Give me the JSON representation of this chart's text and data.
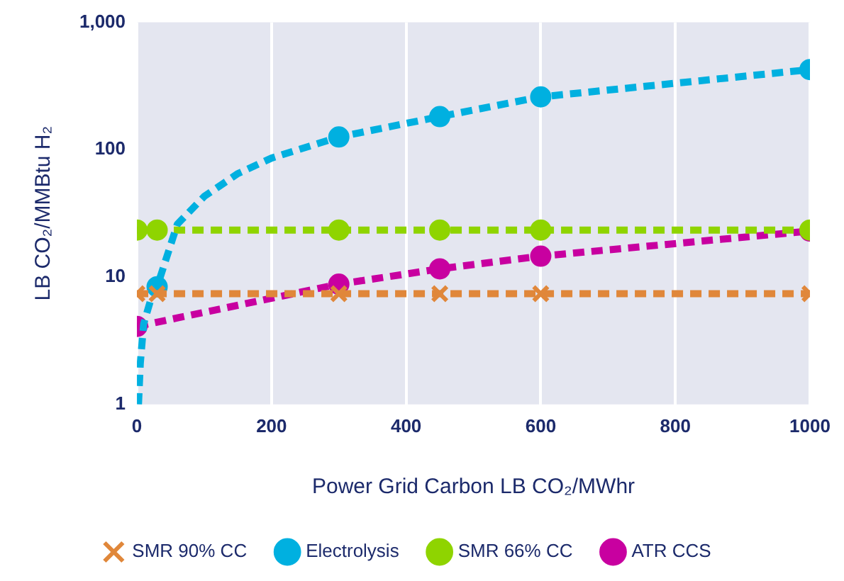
{
  "chart_data": {
    "type": "line",
    "xlabel": "Power Grid Carbon LB CO₂/MWhr",
    "ylabel": "LB CO₂/MMBtu H₂",
    "log": "y",
    "grid": "x",
    "legend": "bottom",
    "line_style": "dashed",
    "xlim": [
      0,
      1000
    ],
    "xticks": [
      0,
      200,
      400,
      600,
      800,
      1000
    ],
    "ylim": [
      1,
      1000
    ],
    "yticks": [
      1,
      10,
      100,
      {
        "value": 1000,
        "label": "1,000"
      }
    ],
    "series": [
      {
        "color": "#00b0e0",
        "marker": "none",
        "x": [
          2.3,
          5,
          10,
          20,
          30,
          60,
          100,
          150,
          200,
          300,
          450,
          600,
          1000
        ],
        "values": [
          1,
          2.1,
          4.3,
          6.5,
          8.4,
          26,
          43,
          65,
          86,
          126,
          182,
          260,
          426
        ]
      },
      {
        "name": "Electrolysis",
        "type": "scatter",
        "color": "#00b0e0",
        "marker": "circle",
        "x": [
          30,
          300,
          450,
          600,
          1000
        ],
        "values": [
          8.4,
          126,
          182,
          260,
          426
        ]
      },
      {
        "name": "SMR 66% CC",
        "color": "#8fd400",
        "marker": "circle",
        "x": [
          0,
          30,
          300,
          450,
          600,
          1000
        ],
        "values": [
          23.4,
          23.4,
          23.4,
          23.4,
          23.4,
          23.4
        ]
      },
      {
        "name": "ATR CCS",
        "color": "#c800a0",
        "marker": "circle",
        "x": [
          0,
          300,
          450,
          600,
          1000
        ],
        "values": [
          4.1,
          8.8,
          11.6,
          14.6,
          23
        ]
      },
      {
        "name": "SMR 90% CC",
        "color": "#e0873a",
        "marker": "cross",
        "x": [
          0,
          30,
          300,
          450,
          600,
          1000
        ],
        "values": [
          7.4,
          7.4,
          7.4,
          7.4,
          7.4,
          7.4
        ]
      }
    ]
  }
}
